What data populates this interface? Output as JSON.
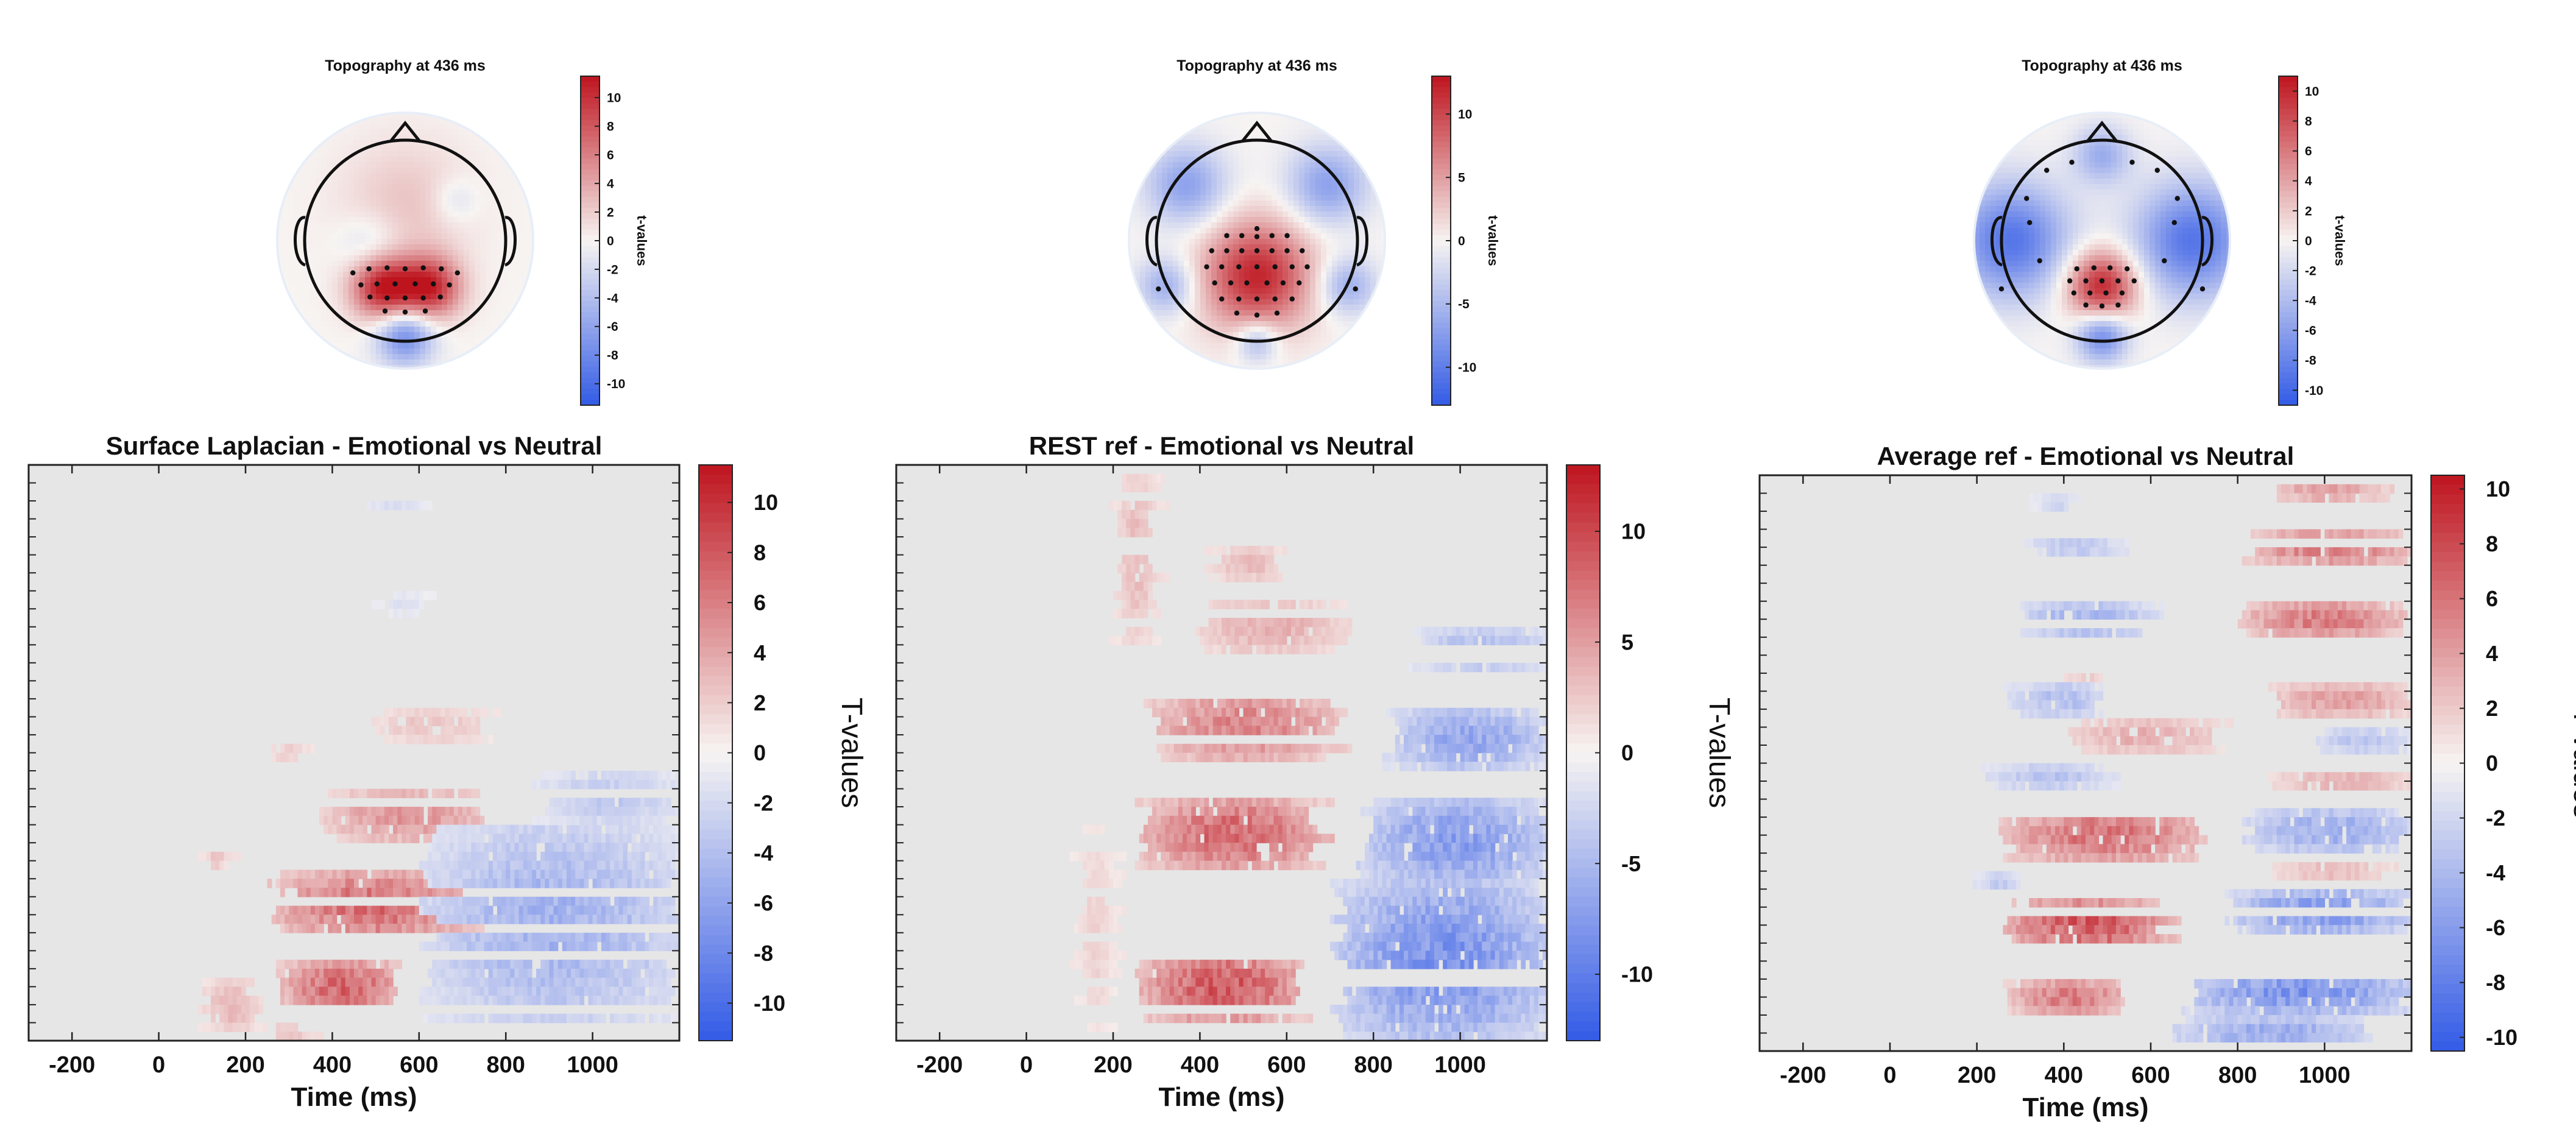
{
  "chart_data": [
    {
      "type": "heatmap",
      "title": "Topography at 436 ms",
      "colorbar_label": "t-values",
      "colorbar_range": [
        -11.5,
        11.5
      ],
      "colorbar_ticks": [
        10,
        8,
        6,
        4,
        2,
        0,
        -2,
        -4,
        -6,
        -8,
        -10
      ],
      "positive_electrodes": [
        [
          -0.52,
          0.32
        ],
        [
          -0.36,
          0.28
        ],
        [
          -0.18,
          0.27
        ],
        [
          0.0,
          0.28
        ],
        [
          0.18,
          0.27
        ],
        [
          0.36,
          0.28
        ],
        [
          0.52,
          0.32
        ],
        [
          -0.44,
          0.44
        ],
        [
          -0.28,
          0.43
        ],
        [
          -0.1,
          0.43
        ],
        [
          0.1,
          0.43
        ],
        [
          0.28,
          0.43
        ],
        [
          0.44,
          0.44
        ],
        [
          -0.35,
          0.56
        ],
        [
          -0.18,
          0.57
        ],
        [
          0.0,
          0.57
        ],
        [
          0.18,
          0.57
        ],
        [
          0.35,
          0.56
        ],
        [
          -0.2,
          0.7
        ],
        [
          0.0,
          0.71
        ],
        [
          0.2,
          0.7
        ]
      ],
      "blobs": [
        {
          "x": -0.22,
          "y": 0.47,
          "t": 11.0,
          "s": 0.22
        },
        {
          "x": 0.24,
          "y": 0.47,
          "t": 10.5,
          "s": 0.22
        },
        {
          "x": 0.0,
          "y": -0.35,
          "t": 2.5,
          "s": 0.45
        },
        {
          "x": -0.35,
          "y": 0.05,
          "t": -2.5,
          "s": 0.22
        },
        {
          "x": 0.5,
          "y": -0.4,
          "t": -2.0,
          "s": 0.16
        },
        {
          "x": 0.0,
          "y": 0.95,
          "t": -8.0,
          "s": 0.2
        }
      ]
    },
    {
      "type": "heatmap",
      "title": "Topography at 436 ms",
      "colorbar_label": "t-values",
      "colorbar_range": [
        -13.0,
        13.0
      ],
      "colorbar_ticks": [
        10,
        5,
        0,
        -5,
        -10
      ],
      "positive_electrodes": [
        [
          0.0,
          -0.12
        ],
        [
          -0.3,
          -0.05
        ],
        [
          -0.15,
          -0.05
        ],
        [
          0.0,
          -0.04
        ],
        [
          0.15,
          -0.05
        ],
        [
          0.3,
          -0.05
        ],
        [
          -0.45,
          0.1
        ],
        [
          -0.3,
          0.1
        ],
        [
          -0.15,
          0.1
        ],
        [
          0.0,
          0.1
        ],
        [
          0.15,
          0.1
        ],
        [
          0.3,
          0.1
        ],
        [
          0.45,
          0.1
        ],
        [
          -0.5,
          0.26
        ],
        [
          -0.35,
          0.26
        ],
        [
          -0.18,
          0.26
        ],
        [
          0.0,
          0.26
        ],
        [
          0.18,
          0.26
        ],
        [
          0.35,
          0.26
        ],
        [
          0.5,
          0.26
        ],
        [
          -0.42,
          0.42
        ],
        [
          -0.26,
          0.42
        ],
        [
          -0.1,
          0.42
        ],
        [
          0.1,
          0.42
        ],
        [
          0.26,
          0.42
        ],
        [
          0.42,
          0.42
        ],
        [
          -0.35,
          0.58
        ],
        [
          -0.18,
          0.58
        ],
        [
          0.0,
          0.58
        ],
        [
          0.18,
          0.58
        ],
        [
          0.35,
          0.58
        ],
        [
          -0.2,
          0.72
        ],
        [
          0.0,
          0.74
        ],
        [
          0.2,
          0.72
        ]
      ],
      "negative_electrodes": [
        [
          -0.98,
          0.48
        ],
        [
          0.98,
          0.48
        ]
      ],
      "blobs": [
        {
          "x": 0.0,
          "y": 0.35,
          "t": 12.0,
          "s": 0.38
        },
        {
          "x": -0.7,
          "y": -0.55,
          "t": -7.0,
          "s": 0.28
        },
        {
          "x": 0.7,
          "y": -0.55,
          "t": -7.0,
          "s": 0.28
        },
        {
          "x": -0.9,
          "y": 0.45,
          "t": -6.0,
          "s": 0.2
        },
        {
          "x": 0.9,
          "y": 0.45,
          "t": -6.0,
          "s": 0.2
        },
        {
          "x": 0.0,
          "y": 1.0,
          "t": -6.0,
          "s": 0.15
        }
      ]
    },
    {
      "type": "heatmap",
      "title": "Topography at 436 ms",
      "colorbar_label": "t-values",
      "colorbar_range": [
        -11.0,
        11.0
      ],
      "colorbar_ticks": [
        10,
        8,
        6,
        4,
        2,
        0,
        -2,
        -4,
        -6,
        -8,
        -10
      ],
      "positive_electrodes": [
        [
          -0.25,
          0.28
        ],
        [
          -0.08,
          0.27
        ],
        [
          0.08,
          0.27
        ],
        [
          0.25,
          0.28
        ],
        [
          -0.32,
          0.4
        ],
        [
          -0.16,
          0.4
        ],
        [
          0.0,
          0.4
        ],
        [
          0.16,
          0.4
        ],
        [
          0.32,
          0.4
        ],
        [
          -0.28,
          0.52
        ],
        [
          -0.12,
          0.52
        ],
        [
          0.04,
          0.52
        ],
        [
          0.2,
          0.52
        ],
        [
          -0.16,
          0.64
        ],
        [
          0.0,
          0.65
        ],
        [
          0.16,
          0.64
        ]
      ],
      "negative_electrodes": [
        [
          -0.55,
          -0.7
        ],
        [
          -0.3,
          -0.78
        ],
        [
          0.3,
          -0.78
        ],
        [
          0.55,
          -0.7
        ],
        [
          -0.75,
          -0.42
        ],
        [
          0.75,
          -0.42
        ],
        [
          -0.72,
          -0.18
        ],
        [
          0.72,
          -0.18
        ],
        [
          -1.0,
          0.48
        ],
        [
          1.0,
          0.48
        ],
        [
          -0.62,
          0.2
        ],
        [
          0.62,
          0.2
        ]
      ],
      "blobs": [
        {
          "x": 0.0,
          "y": 0.45,
          "t": 10.5,
          "s": 0.25
        },
        {
          "x": -0.9,
          "y": 0.0,
          "t": -9.0,
          "s": 0.4
        },
        {
          "x": 0.9,
          "y": 0.0,
          "t": -9.0,
          "s": 0.4
        },
        {
          "x": 0.0,
          "y": -0.85,
          "t": -5.0,
          "s": 0.2
        },
        {
          "x": 0.0,
          "y": 0.95,
          "t": -8.0,
          "s": 0.18
        }
      ]
    },
    {
      "type": "heatmap",
      "title": "Surface Laplacian - Emotional vs Neutral",
      "xlabel": "Time (ms)",
      "colorbar_label": "T-values",
      "x_ticks": [
        -200,
        0,
        200,
        400,
        600,
        800,
        1000
      ],
      "xlim": [
        -300,
        1200
      ],
      "rows": 64,
      "colorbar_range": [
        -11.5,
        11.5
      ],
      "colorbar_ticks": [
        10,
        8,
        6,
        4,
        2,
        0,
        -2,
        -4,
        -6,
        -8,
        -10
      ],
      "clusters": [
        {
          "r": [
            55,
            61
          ],
          "x": [
            290,
            560
          ],
          "t": 9.0
        },
        {
          "r": [
            45,
            53
          ],
          "x": [
            270,
            720
          ],
          "t": 8.5
        },
        {
          "r": [
            36,
            42
          ],
          "x": [
            390,
            760
          ],
          "t": 6.0
        },
        {
          "r": [
            27,
            31
          ],
          "x": [
            500,
            760
          ],
          "t": 3.0
        },
        {
          "r": [
            31,
            33
          ],
          "x": [
            250,
            350
          ],
          "t": 2.5
        },
        {
          "r": [
            57,
            63
          ],
          "x": [
            110,
            230
          ],
          "t": 4.0
        },
        {
          "r": [
            42,
            45
          ],
          "x": [
            110,
            160
          ],
          "t": 3.0
        },
        {
          "r": [
            62,
            64
          ],
          "x": [
            250,
            350
          ],
          "t": 3.5
        },
        {
          "r": [
            40,
            62
          ],
          "x": [
            620,
            1200
          ],
          "t": -6.0
        },
        {
          "r": [
            34,
            40
          ],
          "x": [
            880,
            1200
          ],
          "t": -4.0
        },
        {
          "r": [
            4,
            5
          ],
          "x": [
            470,
            620
          ],
          "t": -2.0
        },
        {
          "r": [
            14,
            17
          ],
          "x": [
            510,
            620
          ],
          "t": -1.8
        }
      ]
    },
    {
      "type": "heatmap",
      "title": "REST ref - Emotional vs Neutral",
      "xlabel": "Time (ms)",
      "colorbar_label": "T-values",
      "x_ticks": [
        -200,
        0,
        200,
        400,
        600,
        800,
        1000
      ],
      "xlim": [
        -300,
        1200
      ],
      "rows": 64,
      "colorbar_range": [
        -13.0,
        13.0
      ],
      "colorbar_ticks": [
        10,
        5,
        0,
        -5,
        -10
      ],
      "clusters": [
        {
          "r": [
            54,
            62
          ],
          "x": [
            270,
            640
          ],
          "t": 11.0
        },
        {
          "r": [
            37,
            45
          ],
          "x": [
            270,
            680
          ],
          "t": 10.0
        },
        {
          "r": [
            25,
            33
          ],
          "x": [
            290,
            720
          ],
          "t": 8.0
        },
        {
          "r": [
            15,
            21
          ],
          "x": [
            400,
            720
          ],
          "t": 5.0
        },
        {
          "r": [
            9,
            13
          ],
          "x": [
            430,
            600
          ],
          "t": 4.0
        },
        {
          "r": [
            0,
            20
          ],
          "x": [
            210,
            300
          ],
          "t": 4.0
        },
        {
          "r": [
            40,
            63
          ],
          "x": [
            120,
            200
          ],
          "t": 2.5
        },
        {
          "r": [
            27,
            34
          ],
          "x": [
            840,
            1200
          ],
          "t": -8.0
        },
        {
          "r": [
            37,
            47
          ],
          "x": [
            780,
            1200
          ],
          "t": -9.0
        },
        {
          "r": [
            46,
            64
          ],
          "x": [
            720,
            1200
          ],
          "t": -10.0
        },
        {
          "r": [
            18,
            23
          ],
          "x": [
            900,
            1200
          ],
          "t": -6.0
        }
      ]
    },
    {
      "type": "heatmap",
      "title": "Average ref - Emotional vs Neutral",
      "xlabel": "Time (ms)",
      "colorbar_label": "T-values",
      "x_ticks": [
        -200,
        0,
        200,
        400,
        600,
        800,
        1000
      ],
      "xlim": [
        -300,
        1200
      ],
      "rows": 64,
      "colorbar_range": [
        -10.5,
        10.5
      ],
      "colorbar_ticks": [
        10,
        8,
        6,
        4,
        2,
        0,
        -2,
        -4,
        -6,
        -8,
        -10
      ],
      "clusters": [
        {
          "r": [
            56,
            60
          ],
          "x": [
            280,
            550
          ],
          "t": 7.0
        },
        {
          "r": [
            47,
            53
          ],
          "x": [
            270,
            640
          ],
          "t": 9.0
        },
        {
          "r": [
            37,
            43
          ],
          "x": [
            270,
            720
          ],
          "t": 7.5
        },
        {
          "r": [
            27,
            31
          ],
          "x": [
            420,
            760
          ],
          "t": 4.0
        },
        {
          "r": [
            20,
            23
          ],
          "x": [
            400,
            500
          ],
          "t": 3.0
        },
        {
          "r": [
            0,
            3
          ],
          "x": [
            880,
            1140
          ],
          "t": 5.0
        },
        {
          "r": [
            6,
            10
          ],
          "x": [
            830,
            1200
          ],
          "t": 7.0
        },
        {
          "r": [
            14,
            18
          ],
          "x": [
            820,
            1180
          ],
          "t": 7.0
        },
        {
          "r": [
            23,
            27
          ],
          "x": [
            880,
            1200
          ],
          "t": 5.0
        },
        {
          "r": [
            33,
            35
          ],
          "x": [
            880,
            1200
          ],
          "t": 4.0
        },
        {
          "r": [
            43,
            45
          ],
          "x": [
            890,
            1150
          ],
          "t": 3.5
        },
        {
          "r": [
            7,
            9
          ],
          "x": [
            320,
            530
          ],
          "t": -4.0
        },
        {
          "r": [
            14,
            18
          ],
          "x": [
            300,
            600
          ],
          "t": -5.5
        },
        {
          "r": [
            23,
            27
          ],
          "x": [
            280,
            500
          ],
          "t": -4.5
        },
        {
          "r": [
            32,
            35
          ],
          "x": [
            220,
            520
          ],
          "t": -4.0
        },
        {
          "r": [
            44,
            47
          ],
          "x": [
            210,
            300
          ],
          "t": -3.5
        },
        {
          "r": [
            37,
            42
          ],
          "x": [
            830,
            1200
          ],
          "t": -6.0
        },
        {
          "r": [
            46,
            51
          ],
          "x": [
            790,
            1200
          ],
          "t": -7.5
        },
        {
          "r": [
            55,
            60
          ],
          "x": [
            690,
            1200
          ],
          "t": -8.0
        },
        {
          "r": [
            28,
            31
          ],
          "x": [
            980,
            1200
          ],
          "t": -4.0
        },
        {
          "r": [
            2,
            4
          ],
          "x": [
            340,
            430
          ],
          "t": -3.0
        },
        {
          "r": [
            60,
            64
          ],
          "x": [
            660,
            1100
          ],
          "t": -6.0
        }
      ]
    }
  ]
}
